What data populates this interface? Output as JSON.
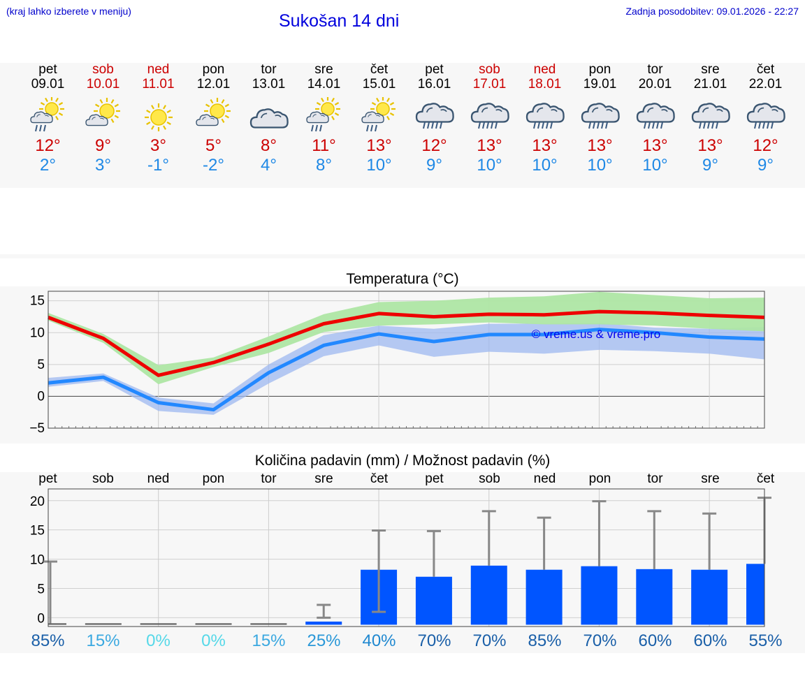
{
  "header": {
    "hint": "(kraj lahko izberete v meniju)",
    "title": "Sukošan 14 dni",
    "updated": "Zadnja posodobitev: 09.01.2026 - 22:27"
  },
  "days": [
    {
      "name": "pet",
      "date": "09.01",
      "weekend": false,
      "icon": "sun-cloud-rain-icon",
      "tmax": "12°",
      "tmin": "2°",
      "precip_pct": "85%"
    },
    {
      "name": "sob",
      "date": "10.01",
      "weekend": true,
      "icon": "sun-cloud-icon",
      "tmax": "9°",
      "tmin": "3°",
      "precip_pct": "15%"
    },
    {
      "name": "ned",
      "date": "11.01",
      "weekend": true,
      "icon": "sun-icon",
      "tmax": "3°",
      "tmin": "-1°",
      "precip_pct": "0%"
    },
    {
      "name": "pon",
      "date": "12.01",
      "weekend": false,
      "icon": "sun-cloud-icon",
      "tmax": "5°",
      "tmin": "-2°",
      "precip_pct": "0%"
    },
    {
      "name": "tor",
      "date": "13.01",
      "weekend": false,
      "icon": "cloud-icon",
      "tmax": "8°",
      "tmin": "4°",
      "precip_pct": "15%"
    },
    {
      "name": "sre",
      "date": "14.01",
      "weekend": false,
      "icon": "sun-cloud-rain-icon",
      "tmax": "11°",
      "tmin": "8°",
      "precip_pct": "25%"
    },
    {
      "name": "čet",
      "date": "15.01",
      "weekend": false,
      "icon": "sun-cloud-rain-icon",
      "tmax": "13°",
      "tmin": "10°",
      "precip_pct": "40%"
    },
    {
      "name": "pet",
      "date": "16.01",
      "weekend": false,
      "icon": "cloud-rain-icon",
      "tmax": "12°",
      "tmin": "9°",
      "precip_pct": "70%"
    },
    {
      "name": "sob",
      "date": "17.01",
      "weekend": true,
      "icon": "cloud-rain-icon",
      "tmax": "13°",
      "tmin": "10°",
      "precip_pct": "70%"
    },
    {
      "name": "ned",
      "date": "18.01",
      "weekend": true,
      "icon": "cloud-rain-icon",
      "tmax": "13°",
      "tmin": "10°",
      "precip_pct": "85%"
    },
    {
      "name": "pon",
      "date": "19.01",
      "weekend": false,
      "icon": "cloud-rain-icon",
      "tmax": "13°",
      "tmin": "10°",
      "precip_pct": "70%"
    },
    {
      "name": "tor",
      "date": "20.01",
      "weekend": false,
      "icon": "cloud-rain-icon",
      "tmax": "13°",
      "tmin": "10°",
      "precip_pct": "60%"
    },
    {
      "name": "sre",
      "date": "21.01",
      "weekend": false,
      "icon": "cloud-rain-icon",
      "tmax": "13°",
      "tmin": "9°",
      "precip_pct": "60%"
    },
    {
      "name": "čet",
      "date": "22.01",
      "weekend": false,
      "icon": "cloud-rain-icon",
      "tmax": "12°",
      "tmin": "9°",
      "precip_pct": "55%"
    }
  ],
  "colors": {
    "max_line": "#ee0000",
    "min_line": "#2288ff",
    "max_band": "#aee6a4",
    "min_band": "#9db8f0",
    "bar": "#0055ff",
    "error": "#888888",
    "weekend_text": "#cc0000"
  },
  "chart_data": [
    {
      "type": "line",
      "title": "Temperatura (°C)",
      "watermark": "© vreme.us & vreme.pro",
      "x_type": "day-index",
      "ylim": [
        -5,
        16.5
      ],
      "yticks": [
        -5,
        0,
        5,
        10,
        15
      ],
      "ytick_labels": [
        "−5",
        "0",
        "5",
        "10",
        "15"
      ],
      "series": [
        {
          "name": "max",
          "values": [
            12.4,
            9.1,
            3.3,
            5.3,
            8.2,
            11.4,
            13.0,
            12.5,
            12.9,
            12.8,
            13.3,
            13.1,
            12.7,
            12.4
          ],
          "band_low": [
            11.9,
            8.4,
            1.9,
            4.6,
            6.8,
            10.1,
            11.1,
            11.3,
            11.6,
            11.3,
            11.3,
            11.1,
            10.6,
            10.2
          ],
          "band_high": [
            13.1,
            9.8,
            4.9,
            6.1,
            9.4,
            12.9,
            14.8,
            15.0,
            15.5,
            15.7,
            16.4,
            15.9,
            15.4,
            15.5
          ]
        },
        {
          "name": "min",
          "values": [
            2.1,
            3.0,
            -1.0,
            -2.1,
            3.7,
            8.0,
            9.8,
            8.6,
            9.7,
            9.7,
            10.5,
            10.0,
            9.3,
            9.0
          ],
          "band_low": [
            1.5,
            2.4,
            -2.3,
            -2.9,
            2.0,
            6.3,
            8.0,
            6.2,
            7.0,
            6.7,
            7.3,
            7.1,
            6.7,
            5.8
          ],
          "band_high": [
            2.9,
            3.6,
            -0.2,
            -1.1,
            5.0,
            9.6,
            11.1,
            10.6,
            11.4,
            11.4,
            11.5,
            10.8,
            10.6,
            10.9
          ]
        }
      ]
    },
    {
      "type": "bar",
      "title": "Količina padavin (mm) / Možnost padavin (%)",
      "categories": [
        "pet",
        "sob",
        "ned",
        "pon",
        "tor",
        "sre",
        "čet",
        "pet",
        "sob",
        "ned",
        "pon",
        "tor",
        "sre",
        "čet"
      ],
      "ylim": [
        -1.5,
        22
      ],
      "yticks": [
        0,
        5,
        10,
        15,
        20
      ],
      "values": [
        0.1,
        0.05,
        0.05,
        0.1,
        0.05,
        0.5,
        8.2,
        7.0,
        8.9,
        8.2,
        8.8,
        8.3,
        8.2,
        9.2
      ],
      "error_low": [
        null,
        null,
        null,
        null,
        null,
        0,
        1.0,
        null,
        null,
        null,
        null,
        null,
        null,
        null
      ],
      "error_high": [
        9.6,
        null,
        null,
        null,
        null,
        2.2,
        14.9,
        14.8,
        18.2,
        17.1,
        19.9,
        18.2,
        17.8,
        20.5
      ]
    }
  ]
}
